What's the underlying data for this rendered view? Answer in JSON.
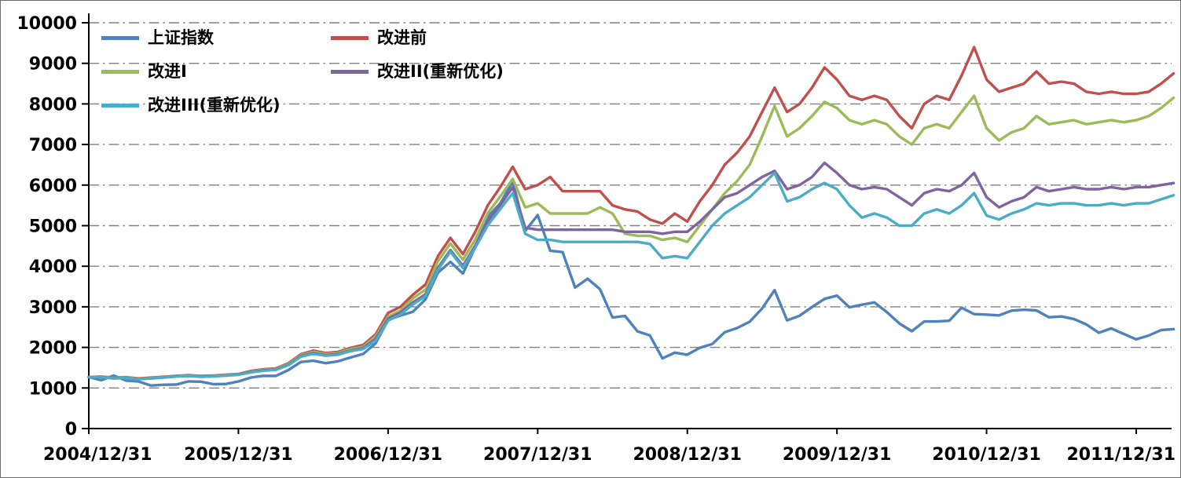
{
  "chart_data": {
    "type": "line",
    "title": "",
    "xlabel": "",
    "ylabel": "",
    "ylim": [
      0,
      10000
    ],
    "y_ticks": [
      0,
      1000,
      2000,
      3000,
      4000,
      5000,
      6000,
      7000,
      8000,
      9000,
      10000
    ],
    "x_tick_labels": [
      "2004/12/31",
      "2005/12/31",
      "2006/12/31",
      "2007/12/31",
      "2008/12/31",
      "2009/12/31",
      "2010/12/31",
      "2011/12/31"
    ],
    "x_unit": "monthly points starting 2004/12/31, one point per month",
    "x_years_span": 7.25,
    "grid": "horizontal dash-dot gray lines at every 1000",
    "legend_position": "inside top-left, two columns",
    "axis_color": "#000000",
    "grid_color": "#808080",
    "series": [
      {
        "name": "上证指数",
        "color": "#4F81BD",
        "values": [
          1266,
          1191,
          1306,
          1181,
          1159,
          1060,
          1080,
          1083,
          1162,
          1155,
          1092,
          1099,
          1161,
          1258,
          1299,
          1298,
          1440,
          1641,
          1672,
          1612,
          1658,
          1752,
          1837,
          2099,
          2675,
          2786,
          2881,
          3183,
          3841,
          4109,
          3820,
          4471,
          5218,
          5552,
          6092,
          4871,
          5262,
          4383,
          4348,
          3473,
          3693,
          3433,
          2736,
          2776,
          2397,
          2294,
          1729,
          1871,
          1821,
          1991,
          2083,
          2373,
          2478,
          2633,
          2959,
          3412,
          2668,
          2779,
          2995,
          3195,
          3277,
          2989,
          3052,
          3109,
          2871,
          2592,
          2398,
          2638,
          2639,
          2656,
          2979,
          2820,
          2808,
          2790,
          2905,
          2928,
          2911,
          2743,
          2762,
          2701,
          2567,
          2359,
          2468,
          2333,
          2199,
          2293,
          2428,
          2450
        ]
      },
      {
        "name": "改进前",
        "color": "#C0504D",
        "values": [
          1266,
          1280,
          1255,
          1265,
          1235,
          1255,
          1275,
          1300,
          1315,
          1295,
          1305,
          1325,
          1345,
          1420,
          1460,
          1480,
          1610,
          1830,
          1920,
          1860,
          1890,
          1990,
          2060,
          2320,
          2850,
          3000,
          3300,
          3550,
          4250,
          4700,
          4300,
          4850,
          5500,
          5950,
          6450,
          5900,
          6000,
          6200,
          5850,
          5850,
          5850,
          5850,
          5500,
          5400,
          5350,
          5150,
          5050,
          5300,
          5100,
          5600,
          6000,
          6500,
          6800,
          7200,
          7800,
          8400,
          7800,
          8000,
          8400,
          8900,
          8600,
          8200,
          8100,
          8200,
          8100,
          7700,
          7400,
          8000,
          8200,
          8100,
          8700,
          9400,
          8600,
          8300,
          8400,
          8500,
          8800,
          8500,
          8550,
          8500,
          8300,
          8250,
          8300,
          8250,
          8250,
          8300,
          8500,
          8750
        ]
      },
      {
        "name": "改进I",
        "color": "#9BBB59",
        "values": [
          1266,
          1275,
          1245,
          1255,
          1225,
          1245,
          1265,
          1292,
          1305,
          1285,
          1295,
          1315,
          1335,
          1405,
          1445,
          1465,
          1590,
          1805,
          1890,
          1835,
          1860,
          1960,
          2015,
          2270,
          2760,
          2910,
          3210,
          3420,
          4120,
          4560,
          4160,
          4660,
          5310,
          5720,
          6150,
          5450,
          5550,
          5300,
          5300,
          5300,
          5300,
          5450,
          5300,
          4800,
          4750,
          4750,
          4650,
          4700,
          4600,
          5000,
          5400,
          5800,
          6100,
          6500,
          7200,
          7950,
          7200,
          7400,
          7700,
          8050,
          7900,
          7600,
          7500,
          7600,
          7500,
          7200,
          7000,
          7400,
          7500,
          7400,
          7800,
          8200,
          7400,
          7100,
          7300,
          7400,
          7700,
          7500,
          7550,
          7600,
          7500,
          7550,
          7600,
          7550,
          7600,
          7700,
          7900,
          8150
        ]
      },
      {
        "name": "改进II(重新优化)",
        "color": "#8064A2",
        "values": [
          1266,
          1270,
          1240,
          1250,
          1220,
          1240,
          1260,
          1288,
          1300,
          1280,
          1290,
          1310,
          1330,
          1395,
          1435,
          1455,
          1570,
          1785,
          1860,
          1810,
          1835,
          1925,
          1985,
          2210,
          2710,
          2860,
          3110,
          3310,
          3960,
          4400,
          4010,
          4510,
          5110,
          5510,
          5950,
          4950,
          4900,
          4900,
          4900,
          4900,
          4900,
          4900,
          4900,
          4850,
          4850,
          4850,
          4800,
          4850,
          4850,
          5100,
          5400,
          5700,
          5800,
          6000,
          6200,
          6350,
          5900,
          6000,
          6200,
          6550,
          6300,
          6000,
          5900,
          5950,
          5900,
          5700,
          5500,
          5800,
          5900,
          5850,
          6000,
          6300,
          5700,
          5450,
          5600,
          5700,
          5950,
          5850,
          5900,
          5950,
          5900,
          5900,
          5950,
          5900,
          5950,
          5950,
          6000,
          6050
        ]
      },
      {
        "name": "改进III(重新优化)",
        "color": "#4BACC6",
        "values": [
          1266,
          1265,
          1235,
          1245,
          1215,
          1235,
          1255,
          1283,
          1295,
          1275,
          1285,
          1305,
          1325,
          1385,
          1425,
          1445,
          1560,
          1770,
          1840,
          1795,
          1820,
          1910,
          1960,
          2160,
          2660,
          2810,
          3060,
          3260,
          3910,
          4360,
          3960,
          4460,
          5010,
          5410,
          5800,
          4800,
          4650,
          4650,
          4600,
          4600,
          4600,
          4600,
          4600,
          4600,
          4600,
          4550,
          4200,
          4250,
          4200,
          4600,
          5000,
          5300,
          5500,
          5700,
          6000,
          6300,
          5600,
          5700,
          5900,
          6050,
          5900,
          5500,
          5200,
          5300,
          5200,
          5000,
          5000,
          5300,
          5400,
          5300,
          5500,
          5800,
          5250,
          5150,
          5300,
          5400,
          5550,
          5500,
          5550,
          5550,
          5500,
          5500,
          5550,
          5500,
          5550,
          5550,
          5650,
          5750
        ]
      }
    ]
  }
}
